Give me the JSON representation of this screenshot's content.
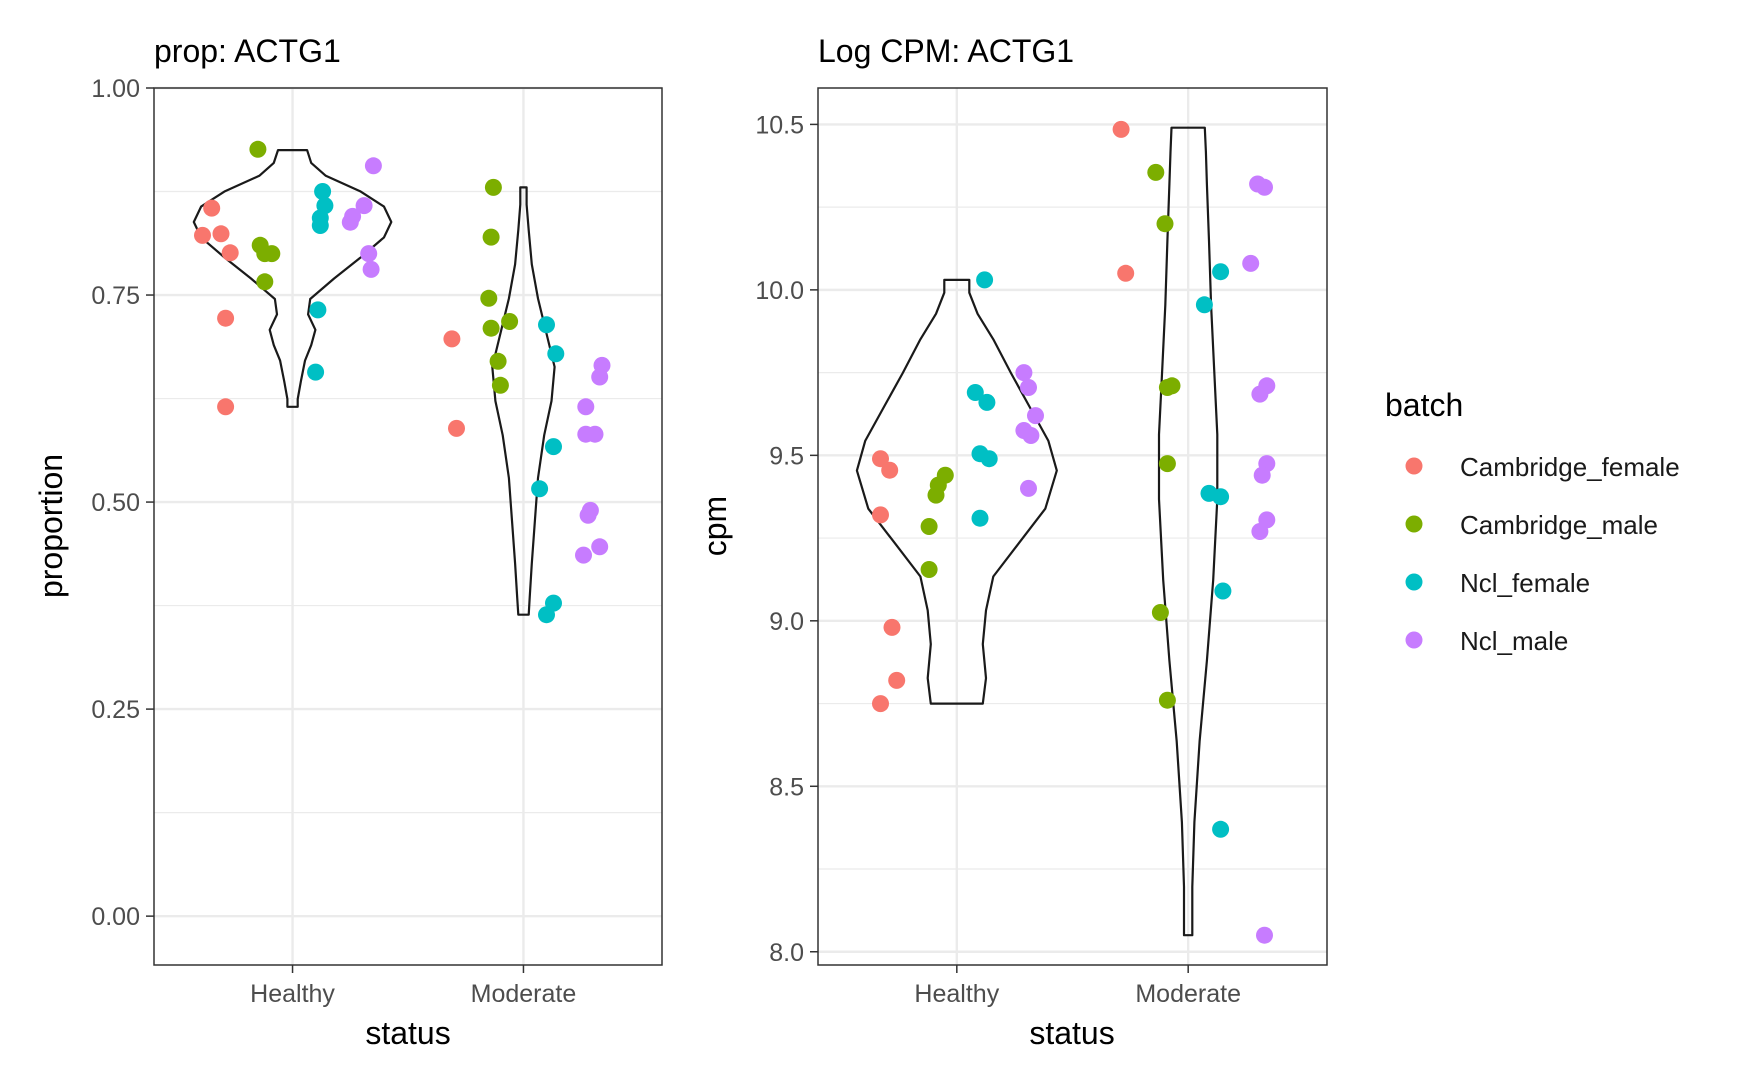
{
  "legend": {
    "title": "batch",
    "items": [
      {
        "label": "Cambridge_female",
        "color": "#F8766D"
      },
      {
        "label": "Cambridge_male",
        "color": "#7CAE00"
      },
      {
        "label": "Ncl_female",
        "color": "#00BFC4"
      },
      {
        "label": "Ncl_male",
        "color": "#C77CFF"
      }
    ]
  },
  "chart_data": [
    {
      "type": "scatter",
      "subtype": "violin-jitter",
      "title": "prop: ACTG1",
      "xlabel": "status",
      "ylabel": "proportion",
      "categories": [
        "Healthy",
        "Moderate"
      ],
      "ylim": [
        -0.059,
        1.0
      ],
      "yticks": [
        0.0,
        0.25,
        0.5,
        0.75,
        1.0
      ],
      "ytick_labels": [
        "0.00",
        "0.25",
        "0.50",
        "0.75",
        "1.00"
      ],
      "grid": true,
      "violins": [
        {
          "category": "Healthy",
          "ymin": 0.615,
          "ymax": 0.925
        },
        {
          "category": "Moderate",
          "ymin": 0.364,
          "ymax": 0.88
        }
      ],
      "series": [
        {
          "name": "Cambridge_female",
          "color": "#F8766D",
          "points": [
            {
              "x": "Healthy",
              "jitter": -0.35,
              "y": 0.855
            },
            {
              "x": "Healthy",
              "jitter": -0.31,
              "y": 0.824
            },
            {
              "x": "Healthy",
              "jitter": -0.39,
              "y": 0.822
            },
            {
              "x": "Healthy",
              "jitter": -0.27,
              "y": 0.801
            },
            {
              "x": "Healthy",
              "jitter": -0.29,
              "y": 0.722
            },
            {
              "x": "Healthy",
              "jitter": -0.29,
              "y": 0.615
            },
            {
              "x": "Moderate",
              "jitter": -0.31,
              "y": 0.697
            },
            {
              "x": "Moderate",
              "jitter": -0.29,
              "y": 0.589
            }
          ]
        },
        {
          "name": "Cambridge_male",
          "color": "#7CAE00",
          "points": [
            {
              "x": "Healthy",
              "jitter": -0.15,
              "y": 0.926
            },
            {
              "x": "Healthy",
              "jitter": -0.14,
              "y": 0.81
            },
            {
              "x": "Healthy",
              "jitter": -0.12,
              "y": 0.8
            },
            {
              "x": "Healthy",
              "jitter": -0.09,
              "y": 0.8
            },
            {
              "x": "Healthy",
              "jitter": -0.12,
              "y": 0.766
            },
            {
              "x": "Moderate",
              "jitter": -0.13,
              "y": 0.88
            },
            {
              "x": "Moderate",
              "jitter": -0.14,
              "y": 0.82
            },
            {
              "x": "Moderate",
              "jitter": -0.15,
              "y": 0.746
            },
            {
              "x": "Moderate",
              "jitter": -0.06,
              "y": 0.718
            },
            {
              "x": "Moderate",
              "jitter": -0.14,
              "y": 0.71
            },
            {
              "x": "Moderate",
              "jitter": -0.11,
              "y": 0.67
            },
            {
              "x": "Moderate",
              "jitter": -0.1,
              "y": 0.641
            }
          ]
        },
        {
          "name": "Ncl_female",
          "color": "#00BFC4",
          "points": [
            {
              "x": "Healthy",
              "jitter": 0.13,
              "y": 0.875
            },
            {
              "x": "Healthy",
              "jitter": 0.14,
              "y": 0.858
            },
            {
              "x": "Healthy",
              "jitter": 0.12,
              "y": 0.843
            },
            {
              "x": "Healthy",
              "jitter": 0.12,
              "y": 0.834
            },
            {
              "x": "Healthy",
              "jitter": 0.11,
              "y": 0.732
            },
            {
              "x": "Healthy",
              "jitter": 0.1,
              "y": 0.657
            },
            {
              "x": "Moderate",
              "jitter": 0.1,
              "y": 0.714
            },
            {
              "x": "Moderate",
              "jitter": 0.14,
              "y": 0.679
            },
            {
              "x": "Moderate",
              "jitter": 0.13,
              "y": 0.567
            },
            {
              "x": "Moderate",
              "jitter": 0.07,
              "y": 0.516
            },
            {
              "x": "Moderate",
              "jitter": 0.13,
              "y": 0.378
            },
            {
              "x": "Moderate",
              "jitter": 0.1,
              "y": 0.364
            }
          ]
        },
        {
          "name": "Ncl_male",
          "color": "#C77CFF",
          "points": [
            {
              "x": "Healthy",
              "jitter": 0.35,
              "y": 0.906
            },
            {
              "x": "Healthy",
              "jitter": 0.31,
              "y": 0.858
            },
            {
              "x": "Healthy",
              "jitter": 0.26,
              "y": 0.845
            },
            {
              "x": "Healthy",
              "jitter": 0.25,
              "y": 0.838
            },
            {
              "x": "Healthy",
              "jitter": 0.33,
              "y": 0.8
            },
            {
              "x": "Healthy",
              "jitter": 0.34,
              "y": 0.781
            },
            {
              "x": "Moderate",
              "jitter": 0.34,
              "y": 0.665
            },
            {
              "x": "Moderate",
              "jitter": 0.33,
              "y": 0.651
            },
            {
              "x": "Moderate",
              "jitter": 0.27,
              "y": 0.615
            },
            {
              "x": "Moderate",
              "jitter": 0.27,
              "y": 0.582
            },
            {
              "x": "Moderate",
              "jitter": 0.31,
              "y": 0.582
            },
            {
              "x": "Moderate",
              "jitter": 0.29,
              "y": 0.49
            },
            {
              "x": "Moderate",
              "jitter": 0.28,
              "y": 0.484
            },
            {
              "x": "Moderate",
              "jitter": 0.26,
              "y": 0.436
            },
            {
              "x": "Moderate",
              "jitter": 0.33,
              "y": 0.446
            }
          ]
        }
      ]
    },
    {
      "type": "scatter",
      "subtype": "violin-jitter",
      "title": "Log CPM: ACTG1",
      "xlabel": "status",
      "ylabel": "cpm",
      "categories": [
        "Healthy",
        "Moderate"
      ],
      "ylim": [
        7.96,
        10.61
      ],
      "yticks": [
        8.0,
        8.5,
        9.0,
        9.5,
        10.0,
        10.5
      ],
      "ytick_labels": [
        "8.0",
        "8.5",
        "9.0",
        "9.5",
        "10.0",
        "10.5"
      ],
      "grid": true,
      "violins": [
        {
          "category": "Healthy",
          "ymin": 8.75,
          "ymax": 10.03
        },
        {
          "category": "Moderate",
          "ymin": 8.05,
          "ymax": 10.49
        }
      ],
      "series": [
        {
          "name": "Cambridge_female",
          "color": "#F8766D",
          "points": [
            {
              "x": "Healthy",
              "jitter": -0.33,
              "y": 9.49
            },
            {
              "x": "Healthy",
              "jitter": -0.29,
              "y": 9.455
            },
            {
              "x": "Healthy",
              "jitter": -0.33,
              "y": 9.32
            },
            {
              "x": "Healthy",
              "jitter": -0.28,
              "y": 8.98
            },
            {
              "x": "Healthy",
              "jitter": -0.26,
              "y": 8.82
            },
            {
              "x": "Healthy",
              "jitter": -0.33,
              "y": 8.75
            },
            {
              "x": "Moderate",
              "jitter": -0.29,
              "y": 10.485
            },
            {
              "x": "Moderate",
              "jitter": -0.27,
              "y": 10.05
            }
          ]
        },
        {
          "name": "Cambridge_male",
          "color": "#7CAE00",
          "points": [
            {
              "x": "Healthy",
              "jitter": -0.05,
              "y": 9.44
            },
            {
              "x": "Healthy",
              "jitter": -0.08,
              "y": 9.41
            },
            {
              "x": "Healthy",
              "jitter": -0.09,
              "y": 9.38
            },
            {
              "x": "Healthy",
              "jitter": -0.12,
              "y": 9.285
            },
            {
              "x": "Healthy",
              "jitter": -0.12,
              "y": 9.155
            },
            {
              "x": "Moderate",
              "jitter": -0.14,
              "y": 10.355
            },
            {
              "x": "Moderate",
              "jitter": -0.1,
              "y": 10.2
            },
            {
              "x": "Moderate",
              "jitter": -0.07,
              "y": 9.71
            },
            {
              "x": "Moderate",
              "jitter": -0.09,
              "y": 9.705
            },
            {
              "x": "Moderate",
              "jitter": -0.09,
              "y": 9.475
            },
            {
              "x": "Moderate",
              "jitter": -0.12,
              "y": 9.025
            },
            {
              "x": "Moderate",
              "jitter": -0.09,
              "y": 8.76
            }
          ]
        },
        {
          "name": "Ncl_female",
          "color": "#00BFC4",
          "points": [
            {
              "x": "Healthy",
              "jitter": 0.12,
              "y": 10.03
            },
            {
              "x": "Healthy",
              "jitter": 0.08,
              "y": 9.69
            },
            {
              "x": "Healthy",
              "jitter": 0.13,
              "y": 9.66
            },
            {
              "x": "Healthy",
              "jitter": 0.1,
              "y": 9.505
            },
            {
              "x": "Healthy",
              "jitter": 0.14,
              "y": 9.49
            },
            {
              "x": "Healthy",
              "jitter": 0.1,
              "y": 9.31
            },
            {
              "x": "Moderate",
              "jitter": 0.14,
              "y": 10.055
            },
            {
              "x": "Moderate",
              "jitter": 0.07,
              "y": 9.955
            },
            {
              "x": "Moderate",
              "jitter": 0.09,
              "y": 9.385
            },
            {
              "x": "Moderate",
              "jitter": 0.14,
              "y": 9.375
            },
            {
              "x": "Moderate",
              "jitter": 0.15,
              "y": 9.09
            },
            {
              "x": "Moderate",
              "jitter": 0.14,
              "y": 8.37
            }
          ]
        },
        {
          "name": "Ncl_male",
          "color": "#C77CFF",
          "points": [
            {
              "x": "Healthy",
              "jitter": 0.29,
              "y": 9.75
            },
            {
              "x": "Healthy",
              "jitter": 0.31,
              "y": 9.705
            },
            {
              "x": "Healthy",
              "jitter": 0.34,
              "y": 9.62
            },
            {
              "x": "Healthy",
              "jitter": 0.29,
              "y": 9.575
            },
            {
              "x": "Healthy",
              "jitter": 0.32,
              "y": 9.56
            },
            {
              "x": "Healthy",
              "jitter": 0.31,
              "y": 9.4
            },
            {
              "x": "Moderate",
              "jitter": 0.3,
              "y": 10.32
            },
            {
              "x": "Moderate",
              "jitter": 0.33,
              "y": 10.31
            },
            {
              "x": "Moderate",
              "jitter": 0.27,
              "y": 10.08
            },
            {
              "x": "Moderate",
              "jitter": 0.34,
              "y": 9.71
            },
            {
              "x": "Moderate",
              "jitter": 0.31,
              "y": 9.685
            },
            {
              "x": "Moderate",
              "jitter": 0.34,
              "y": 9.475
            },
            {
              "x": "Moderate",
              "jitter": 0.32,
              "y": 9.44
            },
            {
              "x": "Moderate",
              "jitter": 0.34,
              "y": 9.305
            },
            {
              "x": "Moderate",
              "jitter": 0.31,
              "y": 9.27
            },
            {
              "x": "Moderate",
              "jitter": 0.33,
              "y": 8.05
            }
          ]
        }
      ]
    }
  ]
}
